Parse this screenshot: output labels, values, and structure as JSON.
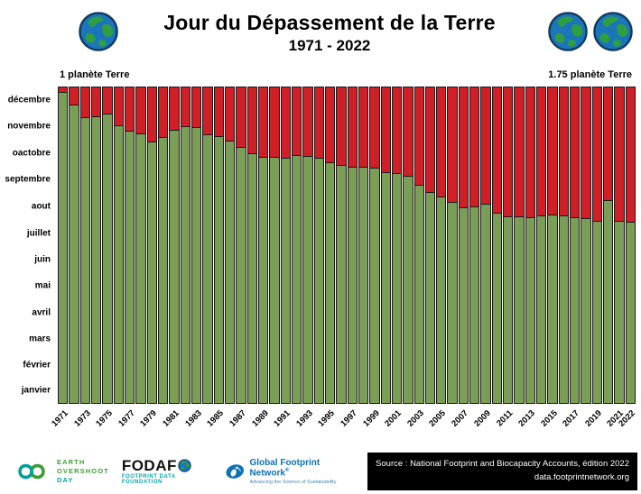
{
  "header": {
    "title": "Jour du Dépassement de la Terre",
    "subtitle": "1971 - 2022",
    "left_label": "1 planète Terre",
    "right_label": "1.75 planète Terre"
  },
  "chart_data": {
    "type": "bar",
    "stacked": true,
    "title": "Jour du Dépassement de la Terre",
    "subtitle": "1971 - 2022",
    "ylim": [
      0,
      365
    ],
    "grid": false,
    "legend": "none",
    "y_tick_months": [
      "janvier",
      "février",
      "mars",
      "avril",
      "mai",
      "juin",
      "juillet",
      "aout",
      "septembre",
      "oactobre",
      "novembre",
      "décembre"
    ],
    "x_tick_years": [
      1971,
      1973,
      1975,
      1977,
      1979,
      1981,
      1983,
      1985,
      1987,
      1989,
      1991,
      1993,
      1995,
      1997,
      1999,
      2001,
      2003,
      2005,
      2007,
      2009,
      2011,
      2013,
      2015,
      2017,
      2019,
      2021,
      2022
    ],
    "years": [
      1971,
      1972,
      1973,
      1974,
      1975,
      1976,
      1977,
      1978,
      1979,
      1980,
      1981,
      1982,
      1983,
      1984,
      1985,
      1986,
      1987,
      1988,
      1989,
      1990,
      1991,
      1992,
      1993,
      1994,
      1995,
      1996,
      1997,
      1998,
      1999,
      2000,
      2001,
      2002,
      2003,
      2004,
      2005,
      2006,
      2007,
      2008,
      2009,
      2010,
      2011,
      2012,
      2013,
      2014,
      2015,
      2016,
      2017,
      2018,
      2019,
      2020,
      2021,
      2022
    ],
    "overshoot_day_of_year": [
      359,
      344,
      330,
      331,
      334,
      320,
      314,
      311,
      302,
      307,
      315,
      319,
      318,
      310,
      308,
      303,
      296,
      288,
      284,
      284,
      283,
      286,
      285,
      283,
      278,
      275,
      273,
      273,
      272,
      266,
      265,
      262,
      252,
      244,
      238,
      232,
      226,
      227,
      230,
      220,
      216,
      216,
      215,
      217,
      218,
      217,
      215,
      214,
      210,
      234,
      210,
      209
    ],
    "colors": {
      "green_before_overshoot": "#7b9e57",
      "red_after_overshoot": "#ce2026",
      "bar_outline": "#1a1a1a"
    }
  },
  "footer": {
    "eod": {
      "line1": "EARTH",
      "line2": "OVERSHOOT",
      "line3": "DAY"
    },
    "fodafo": {
      "name": "FODAFO",
      "name_prefix": "FODAF",
      "tagline": "FOOTPRINT DATA FOUNDATION"
    },
    "gfn": {
      "name": "Global Footprint Network",
      "reg": "®",
      "tagline": "Advancing the Science of Sustainability"
    },
    "source": {
      "line1": "Source : National Footprint and Biocapacity Accounts, édition 2022",
      "line2": "data.footprintnetwork.org"
    }
  }
}
